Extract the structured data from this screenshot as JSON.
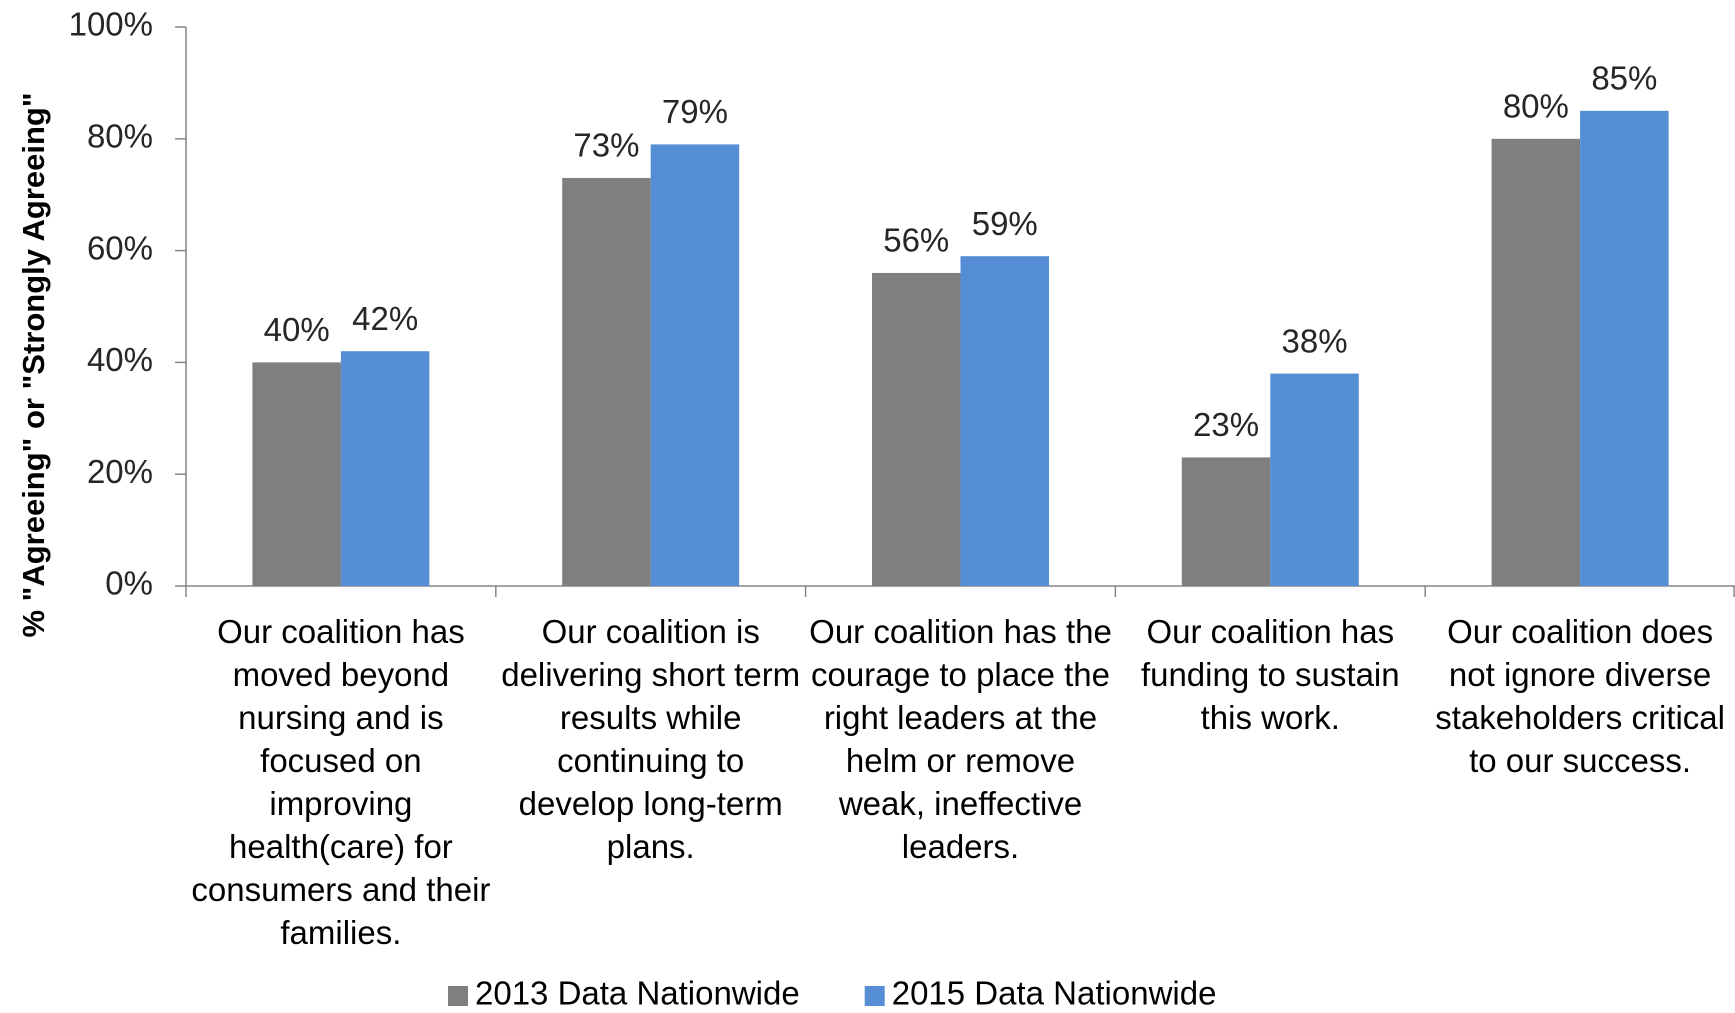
{
  "chart_data": {
    "type": "bar",
    "y_axis_label": "% \"Agreeing\" or \"Strongly Agreeing\"",
    "categories": [
      "Our coalition has moved beyond nursing and is focused on improving health(care) for consumers and their families.",
      "Our coalition is delivering short term results while continuing to develop long-term plans.",
      "Our coalition has the courage to place the right leaders at the helm or remove weak, ineffective leaders.",
      "Our coalition has funding to sustain this work.",
      "Our coalition does not ignore diverse stakeholders critical to our success."
    ],
    "series": [
      {
        "name": "2013 Data Nationwide",
        "color": "#7f7f7f",
        "values": [
          40,
          73,
          56,
          23,
          80
        ],
        "value_labels": [
          "40%",
          "73%",
          "56%",
          "23%",
          "80%"
        ]
      },
      {
        "name": "2015 Data Nationwide",
        "color": "#558ed5",
        "values": [
          42,
          79,
          59,
          38,
          85
        ],
        "value_labels": [
          "42%",
          "79%",
          "59%",
          "38%",
          "85%"
        ]
      }
    ],
    "ylim": [
      0,
      100
    ],
    "yticks": [
      {
        "value": 0,
        "label": "0%"
      },
      {
        "value": 20,
        "label": "20%"
      },
      {
        "value": 40,
        "label": "40%"
      },
      {
        "value": 60,
        "label": "60%"
      },
      {
        "value": 80,
        "label": "80%"
      },
      {
        "value": 100,
        "label": "100%"
      }
    ],
    "legend": "bottom"
  }
}
